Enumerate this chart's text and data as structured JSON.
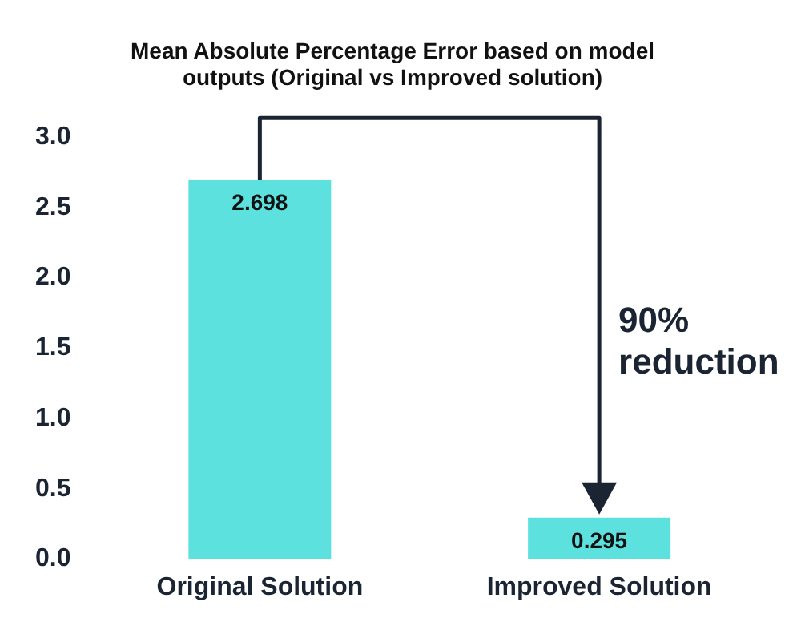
{
  "chart_data": {
    "type": "bar",
    "title": "Mean Absolute Percentage Error based on model outputs (Original vs Improved solution)",
    "categories": [
      "Original Solution",
      "Improved Solution"
    ],
    "values": [
      2.698,
      0.295
    ],
    "color": "#5ce1de",
    "ylim": [
      0,
      3.0
    ],
    "yticks": [
      {
        "value": 0,
        "label": "0.0"
      },
      0.5,
      {
        "value": 1,
        "label": "1.0"
      },
      1.5,
      {
        "value": 2,
        "label": "2.0"
      },
      2.5,
      {
        "value": 3,
        "label": "3.0"
      }
    ],
    "grid": false,
    "legend": false,
    "data_labels": true,
    "annotations": [
      "90% reduction"
    ]
  }
}
